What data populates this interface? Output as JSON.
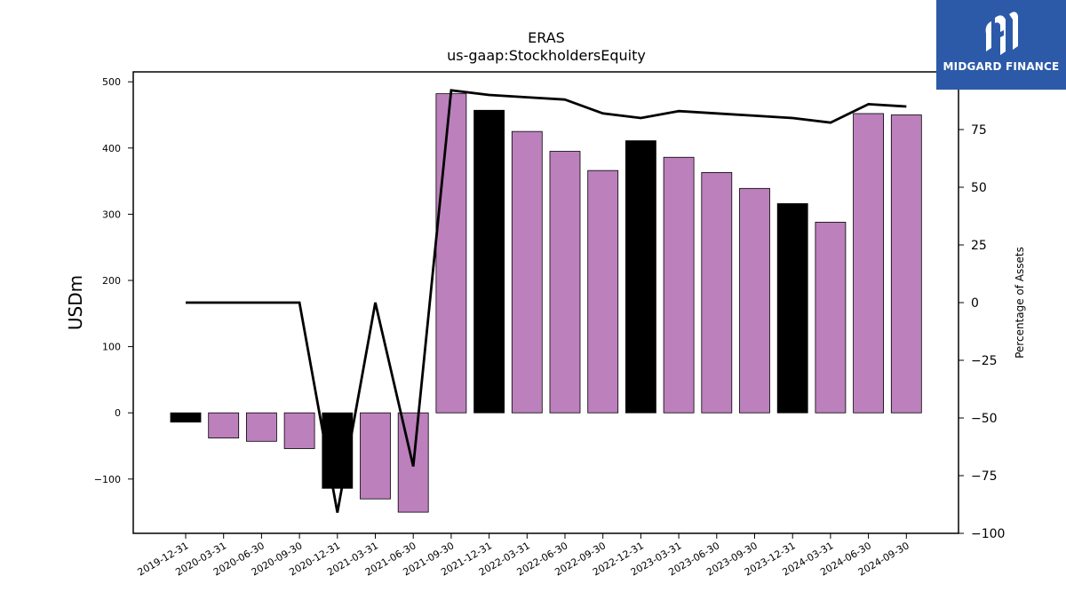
{
  "title": "ERAS",
  "subtitle": "us-gaap:StockholdersEquity",
  "logo": {
    "text": "MIDGARD FINANCE",
    "background": "#2c5aa8",
    "icon": "midgard-logo-icon"
  },
  "colors": {
    "bar": "#bc80bd",
    "bar_highlight": "#000000",
    "line": "#000000",
    "background": "#ffffff"
  },
  "chart_data": {
    "type": "bar",
    "title": "ERAS",
    "subtitle": "us-gaap:StockholdersEquity",
    "ylabel": "USDm",
    "y2label": "Percentage of Assets",
    "ylim": [
      -182,
      515
    ],
    "y2lim": [
      -100,
      100
    ],
    "yticks": [
      -100,
      0,
      100,
      200,
      300,
      400,
      500
    ],
    "y2ticks": [
      -100,
      -75,
      -50,
      -25,
      0,
      25,
      50,
      75
    ],
    "categories": [
      "2019-12-31",
      "2020-03-31",
      "2020-06-30",
      "2020-09-30",
      "2020-12-31",
      "2021-03-31",
      "2021-06-30",
      "2021-09-30",
      "2021-12-31",
      "2022-03-31",
      "2022-06-30",
      "2022-09-30",
      "2022-12-31",
      "2023-03-31",
      "2023-06-30",
      "2023-09-30",
      "2023-12-31",
      "2024-03-31",
      "2024-06-30",
      "2024-09-30"
    ],
    "series": [
      {
        "type": "bar",
        "axis": "left",
        "values": [
          -14,
          -38,
          -43,
          -54,
          -114,
          -130,
          -150,
          482,
          457,
          425,
          395,
          366,
          411,
          386,
          363,
          339,
          316,
          288,
          452,
          450
        ],
        "highlight": [
          true,
          false,
          false,
          false,
          true,
          false,
          false,
          false,
          true,
          false,
          false,
          false,
          true,
          false,
          false,
          false,
          true,
          false,
          false,
          false
        ]
      },
      {
        "type": "line",
        "axis": "right",
        "values": [
          0,
          0,
          0,
          0,
          -91,
          0,
          -71,
          92,
          90,
          89,
          88,
          82,
          80,
          83,
          82,
          81,
          80,
          78,
          86,
          85
        ]
      }
    ],
    "grid": false,
    "legend": "none"
  }
}
